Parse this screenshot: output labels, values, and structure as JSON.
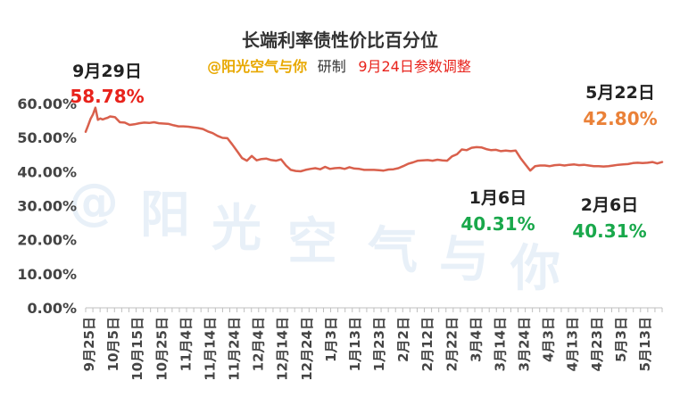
{
  "chart_data": {
    "type": "line",
    "title": "长端利率债性价比百分位",
    "subtitle": {
      "author": "@阳光空气与你",
      "mid": "研制",
      "note": "9月24日参数调整"
    },
    "watermark": "@阳光空气与你",
    "ylim": [
      0,
      0.6
    ],
    "y_ticks": [
      "0.00%",
      "10.00%",
      "20.00%",
      "30.00%",
      "40.00%",
      "50.00%",
      "60.00%"
    ],
    "x_ticks": [
      "9月25日",
      "10月5日",
      "10月15日",
      "10月25日",
      "11月4日",
      "11月14日",
      "11月24日",
      "12月4日",
      "12月14日",
      "12月24日",
      "1月3日",
      "1月13日",
      "1月23日",
      "2月2日",
      "2月12日",
      "2月22日",
      "3月4日",
      "3月14日",
      "3月24日",
      "4月3日",
      "4月13日",
      "4月23日",
      "5月3日",
      "5月13日"
    ],
    "series": [
      {
        "color": "#d9604c",
        "x": [
          0,
          1,
          2,
          3,
          4,
          5,
          6,
          7,
          8,
          9,
          10,
          12,
          14,
          16,
          18,
          20,
          22,
          24,
          26,
          28,
          30,
          32,
          34,
          36,
          38,
          40,
          42,
          44,
          46,
          48,
          50,
          52,
          54,
          56,
          58,
          60,
          62,
          64,
          66,
          68,
          70,
          72,
          74,
          76,
          78,
          80,
          82,
          84,
          86,
          88,
          90,
          92,
          94,
          96,
          98,
          100,
          102,
          104,
          106,
          108,
          110,
          112,
          114,
          116,
          118,
          120,
          122,
          124,
          126,
          128,
          130,
          132,
          134,
          136,
          138,
          140,
          142,
          144,
          146,
          148,
          150,
          152,
          154,
          156,
          158,
          160,
          162,
          164,
          166,
          168,
          170,
          172,
          174,
          176,
          178,
          180,
          182,
          184,
          186,
          188,
          190,
          192,
          194,
          196,
          198,
          200,
          202,
          204,
          206,
          208,
          210,
          212,
          214,
          216,
          218,
          220,
          222,
          224,
          226,
          228,
          230,
          232,
          234,
          236
        ],
        "values": [
          0.517,
          0.535,
          0.555,
          0.568,
          0.5878,
          0.552,
          0.556,
          0.553,
          0.556,
          0.558,
          0.562,
          0.56,
          0.545,
          0.544,
          0.537,
          0.539,
          0.542,
          0.544,
          0.543,
          0.545,
          0.542,
          0.541,
          0.54,
          0.536,
          0.533,
          0.533,
          0.532,
          0.53,
          0.528,
          0.525,
          0.518,
          0.513,
          0.505,
          0.499,
          0.498,
          0.48,
          0.46,
          0.44,
          0.432,
          0.446,
          0.433,
          0.437,
          0.438,
          0.434,
          0.432,
          0.436,
          0.418,
          0.405,
          0.402,
          0.401,
          0.405,
          0.408,
          0.41,
          0.407,
          0.414,
          0.408,
          0.41,
          0.411,
          0.408,
          0.413,
          0.409,
          0.408,
          0.405,
          0.405,
          0.405,
          0.404,
          0.4031,
          0.406,
          0.407,
          0.41,
          0.416,
          0.423,
          0.427,
          0.432,
          0.433,
          0.434,
          0.432,
          0.435,
          0.433,
          0.432,
          0.445,
          0.451,
          0.465,
          0.463,
          0.47,
          0.472,
          0.471,
          0.466,
          0.463,
          0.464,
          0.46,
          0.462,
          0.46,
          0.462,
          0.44,
          0.421,
          0.4031,
          0.416,
          0.418,
          0.418,
          0.416,
          0.419,
          0.42,
          0.418,
          0.42,
          0.421,
          0.419,
          0.42,
          0.418,
          0.416,
          0.416,
          0.415,
          0.416,
          0.418,
          0.42,
          0.421,
          0.422,
          0.425,
          0.426,
          0.425,
          0.426,
          0.428,
          0.424,
          0.428
        ]
      }
    ],
    "annotations": [
      {
        "label": "9月29日",
        "value": "58.78%",
        "color": "#e8221b"
      },
      {
        "label": "1月6日",
        "value": "40.31%",
        "color": "#19a84b"
      },
      {
        "label": "2月6日",
        "value": "40.31%",
        "color": "#19a84b"
      },
      {
        "label": "5月22日",
        "value": "42.80%",
        "color": "#ea8138"
      }
    ],
    "colors": {
      "author": "#e8a800",
      "note": "#e8221b",
      "axis": "#bfbfbf",
      "text": "#333333"
    }
  }
}
